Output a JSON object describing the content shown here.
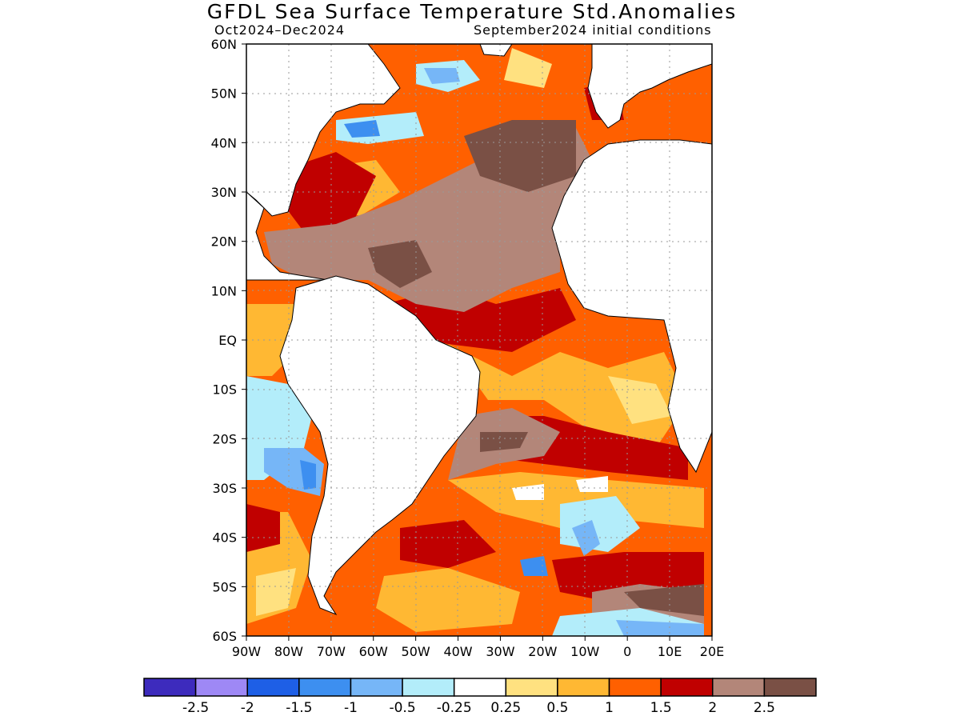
{
  "header": {
    "title": "GFDL Sea Surface Temperature Std.Anomalies",
    "period": "Oct2024–Dec2024",
    "init": "September2024 initial conditions"
  },
  "map": {
    "lat_labels": [
      "60N",
      "50N",
      "40N",
      "30N",
      "20N",
      "10N",
      "EQ",
      "10S",
      "20S",
      "30S",
      "40S",
      "50S",
      "60S"
    ],
    "lon_labels": [
      "90W",
      "80W",
      "70W",
      "60W",
      "50W",
      "40W",
      "30W",
      "20W",
      "10W",
      "0",
      "10E",
      "20E"
    ],
    "lat_range": [
      -60,
      60
    ],
    "lon_range": [
      -90,
      20
    ],
    "grid": "dotted"
  },
  "colorbar": {
    "labels": [
      "-2.5",
      "-2",
      "-1.5",
      "-1",
      "-0.5",
      "-0.25",
      "0.25",
      "0.5",
      "1",
      "1.5",
      "2",
      "2.5"
    ],
    "colors": [
      "#3d2bbd",
      "#9e88f5",
      "#1e5fe6",
      "#3d8ff0",
      "#76b6f7",
      "#b3edfa",
      "#ffffff",
      "#ffe180",
      "#ffb833",
      "#ff6000",
      "#c00000",
      "#b38679",
      "#7a5045"
    ]
  }
}
